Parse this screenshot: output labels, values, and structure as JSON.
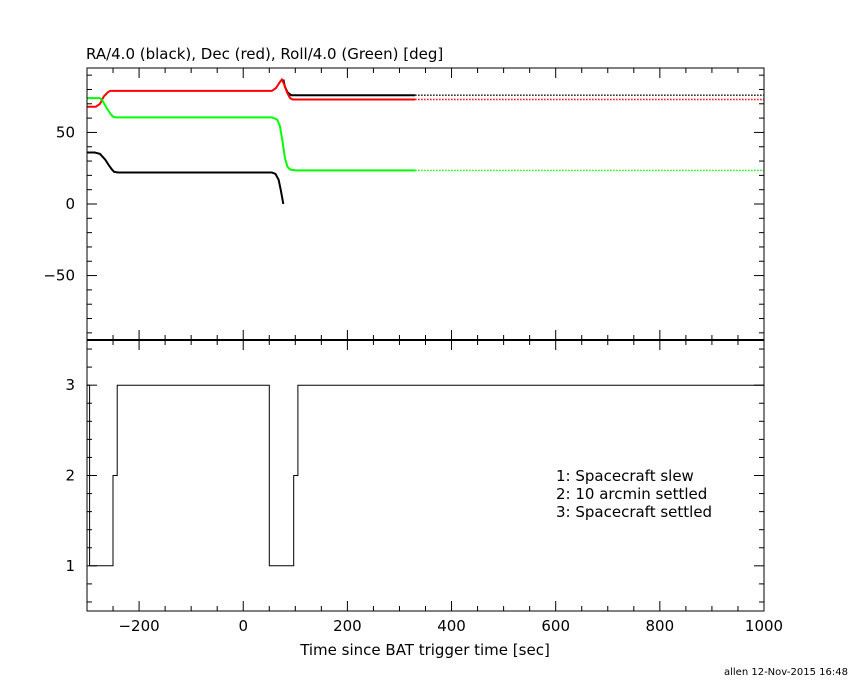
{
  "chart_data": [
    {
      "type": "line",
      "title": "RA/4.0 (black), Dec (red), Roll/4.0 (Green) [deg]",
      "xlim": [
        -300,
        1000
      ],
      "ylim": [
        -95,
        95
      ],
      "y_ticks": [
        -50,
        0,
        50
      ],
      "grid": false,
      "series": [
        {
          "color": "#000000",
          "x": [
            -300,
            -285,
            -275,
            -265,
            -258,
            -252,
            -248,
            -240,
            -200,
            -100,
            0,
            55,
            62,
            68,
            72,
            75,
            77
          ],
          "y": [
            36,
            36,
            35,
            31,
            27,
            24,
            22.5,
            22,
            22,
            22,
            22,
            22,
            21,
            17,
            10,
            4,
            0
          ]
        },
        {
          "color": "#000000",
          "x": [
            77,
            80,
            85,
            92,
            100,
            200,
            330
          ],
          "y": [
            87,
            82,
            78,
            76,
            76,
            76,
            76
          ]
        },
        {
          "color": "#000000",
          "dotted": true,
          "x": [
            330,
            1000
          ],
          "y": [
            76,
            76
          ]
        },
        {
          "color": "#ff0000",
          "x": [
            -300,
            -283,
            -275,
            -268,
            -260,
            -255,
            -250,
            -200,
            -100,
            0,
            55,
            63,
            70,
            74,
            78,
            84,
            90,
            95,
            100,
            200,
            330
          ],
          "y": [
            68,
            68,
            70,
            75,
            78,
            79,
            79,
            79,
            79,
            79,
            79,
            81,
            85,
            87,
            84,
            78,
            74,
            73,
            73,
            73,
            73
          ]
        },
        {
          "color": "#ff0000",
          "dotted": true,
          "x": [
            330,
            1000
          ],
          "y": [
            73,
            73
          ]
        },
        {
          "color": "#00ff00",
          "x": [
            -300,
            -275,
            -270,
            -262,
            -255,
            -250,
            -245,
            -200,
            -100,
            0,
            55,
            65,
            70,
            75,
            80,
            85,
            90,
            100,
            200,
            330
          ],
          "y": [
            74,
            74,
            72,
            67,
            63,
            61,
            60.5,
            60.5,
            60.5,
            60.5,
            60.5,
            59,
            55,
            45,
            32,
            26,
            24,
            23.5,
            23.5,
            23.5
          ]
        },
        {
          "color": "#00ff00",
          "dotted": true,
          "x": [
            330,
            1000
          ],
          "y": [
            23.5,
            23.5
          ]
        }
      ]
    },
    {
      "type": "line",
      "step": true,
      "xlabel": "Time since BAT trigger time [sec]",
      "xlim": [
        -300,
        1000
      ],
      "ylim": [
        0.5,
        3.5
      ],
      "x_ticks": [
        -200,
        0,
        200,
        400,
        600,
        800,
        1000
      ],
      "y_ticks": [
        1,
        2,
        3
      ],
      "grid": false,
      "legend_placement": "right",
      "legend": [
        "1: Spacecraft slew",
        "2: 10 arcmin settled",
        "3: Spacecraft settled"
      ],
      "series": [
        {
          "color": "#000000",
          "x": [
            -300,
            -295,
            -295,
            -250,
            -250,
            -242,
            -242,
            50,
            50,
            97,
            97,
            105,
            105,
            1000
          ],
          "y": [
            3,
            3,
            1,
            1,
            2,
            2,
            3,
            3,
            1,
            1,
            2,
            2,
            3,
            3
          ]
        }
      ]
    }
  ],
  "footer": "allen 12-Nov-2015 16:48"
}
